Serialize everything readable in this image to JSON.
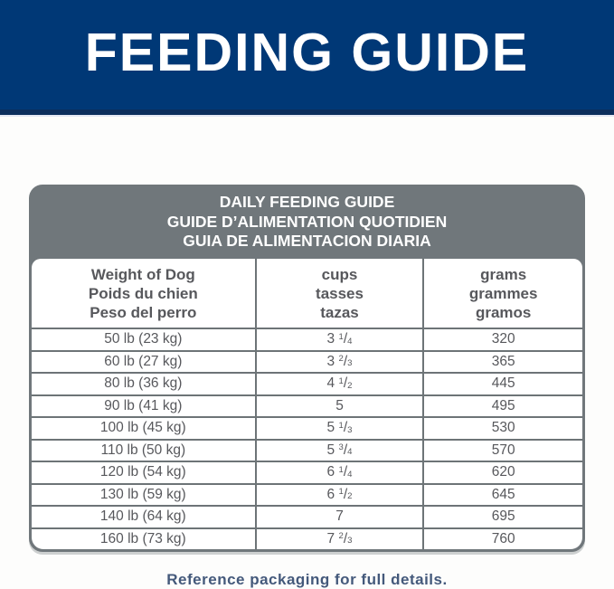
{
  "banner": {
    "title": "FEEDING GUIDE",
    "bg_color": "#003876",
    "text_color": "#ffffff"
  },
  "table": {
    "title_lines": [
      "DAILY FEEDING GUIDE",
      "GUIDE D’ALIMENTATION QUOTIDIEN",
      "GUIA DE ALIMENTACION DIARIA"
    ],
    "columns": [
      {
        "id": "weight",
        "header_lines": [
          "Weight of Dog",
          "Poids du chien",
          "Peso del perro"
        ]
      },
      {
        "id": "cups",
        "header_lines": [
          "cups",
          "tasses",
          "tazas"
        ]
      },
      {
        "id": "grams",
        "header_lines": [
          "grams",
          "grammes",
          "gramos"
        ]
      }
    ],
    "rows": [
      {
        "weight": "50 lb (23 kg)",
        "cups": "3 1/4",
        "grams": "320"
      },
      {
        "weight": "60 lb (27 kg)",
        "cups": "3 2/3",
        "grams": "365"
      },
      {
        "weight": "80 lb (36 kg)",
        "cups": "4 1/2",
        "grams": "445"
      },
      {
        "weight": "90 lb (41 kg)",
        "cups": "5",
        "grams": "495"
      },
      {
        "weight": "100 lb (45 kg)",
        "cups": "5 1/3",
        "grams": "530"
      },
      {
        "weight": "110 lb (50 kg)",
        "cups": "5 3/4",
        "grams": "570"
      },
      {
        "weight": "120 lb (54 kg)",
        "cups": "6 1/4",
        "grams": "620"
      },
      {
        "weight": "130 lb (59 kg)",
        "cups": "6 1/2",
        "grams": "645"
      },
      {
        "weight": "140 lb (64 kg)",
        "cups": "7",
        "grams": "695"
      },
      {
        "weight": "160 lb (73 kg)",
        "cups": "7 2/3",
        "grams": "760"
      }
    ],
    "header_bg": "#70777b",
    "border_color": "#6d7477",
    "text_color": "#57585c"
  },
  "footer": {
    "note": "Reference packaging for full details.",
    "color": "#44597b"
  }
}
